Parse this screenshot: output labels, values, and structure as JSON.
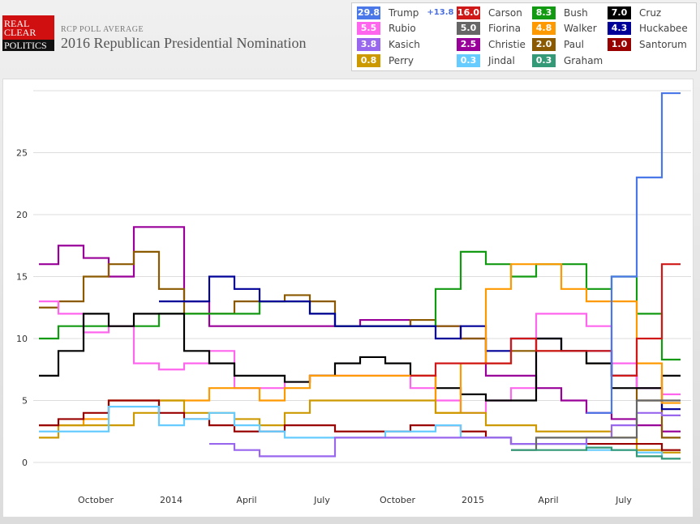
{
  "header": {
    "logo": [
      "REAL",
      "CLEAR",
      "POLITICS"
    ],
    "subtitle": "RCP POLL AVERAGE",
    "title": "2016 Republican Presidential Nomination"
  },
  "legend": [
    {
      "name": "Trump",
      "value": "29.8",
      "color": "#4a78e8",
      "change": "+13.8"
    },
    {
      "name": "Carson",
      "value": "16.0",
      "color": "#d01818"
    },
    {
      "name": "Bush",
      "value": "8.3",
      "color": "#139a13"
    },
    {
      "name": "Cruz",
      "value": "7.0",
      "color": "#000000"
    },
    {
      "name": "Rubio",
      "value": "5.5",
      "color": "#ff66ee"
    },
    {
      "name": "Fiorina",
      "value": "5.0",
      "color": "#666666"
    },
    {
      "name": "Walker",
      "value": "4.8",
      "color": "#ff9900"
    },
    {
      "name": "Huckabee",
      "value": "4.3",
      "color": "#000099"
    },
    {
      "name": "Kasich",
      "value": "3.8",
      "color": "#9966ee"
    },
    {
      "name": "Christie",
      "value": "2.5",
      "color": "#990099"
    },
    {
      "name": "Paul",
      "value": "2.0",
      "color": "#8b5a00"
    },
    {
      "name": "Santorum",
      "value": "1.0",
      "color": "#990000"
    },
    {
      "name": "Perry",
      "value": "0.8",
      "color": "#cc9900"
    },
    {
      "name": "Jindal",
      "value": "0.3",
      "color": "#66ccff"
    },
    {
      "name": "Graham",
      "value": "0.3",
      "color": "#339977"
    }
  ],
  "chart_data": {
    "type": "line",
    "title": "2016 Republican Presidential Nomination",
    "ylim": [
      0,
      30
    ],
    "yticks": [
      "0",
      "5",
      "10",
      "15",
      "20",
      "25"
    ],
    "xticks": [
      {
        "label": "October",
        "month": 2
      },
      {
        "label": "2014",
        "month": 5
      },
      {
        "label": "April",
        "month": 8
      },
      {
        "label": "July",
        "month": 11
      },
      {
        "label": "October",
        "month": 14
      },
      {
        "label": "2015",
        "month": 17
      },
      {
        "label": "April",
        "month": 20
      },
      {
        "label": "July",
        "month": 23
      }
    ],
    "x": [
      "2013-08",
      "2013-09",
      "2013-10",
      "2013-11",
      "2013-12",
      "2014-01",
      "2014-02",
      "2014-03",
      "2014-04",
      "2014-05",
      "2014-06",
      "2014-07",
      "2014-08",
      "2014-09",
      "2014-10",
      "2014-11",
      "2014-12",
      "2015-01",
      "2015-02",
      "2015-03",
      "2015-04",
      "2015-05",
      "2015-06",
      "2015-07",
      "2015-08",
      "2015-09"
    ],
    "series": [
      {
        "name": "Christie",
        "values": [
          16,
          17.5,
          16.5,
          15,
          19,
          19,
          13,
          11,
          11,
          11,
          11,
          11,
          11,
          11.5,
          11.5,
          11,
          11,
          10,
          7,
          7,
          6,
          5,
          4,
          3.5,
          3,
          2.5
        ]
      },
      {
        "name": "Paul",
        "values": [
          12.5,
          13,
          15,
          16,
          17,
          14,
          12,
          12,
          13,
          13,
          13.5,
          13,
          11,
          11,
          11,
          11.5,
          11,
          10,
          8,
          9,
          9,
          9,
          8,
          7,
          5,
          2
        ]
      },
      {
        "name": "Bush",
        "values": [
          10,
          11,
          11,
          11,
          11,
          12,
          12,
          12,
          12,
          13,
          13,
          12,
          11,
          11,
          11,
          11,
          14,
          17,
          16,
          15,
          16,
          16,
          14,
          15,
          12,
          8.3
        ]
      },
      {
        "name": "Huckabee",
        "values": [
          null,
          null,
          null,
          null,
          null,
          13,
          13,
          15,
          14,
          13,
          13,
          12,
          11,
          11,
          11,
          11,
          10,
          11,
          9,
          10,
          10,
          9,
          9,
          7,
          6,
          4.3
        ]
      },
      {
        "name": "Rubio",
        "values": [
          13,
          12,
          10.5,
          11,
          8,
          7.5,
          8,
          9,
          6,
          6,
          6.5,
          7,
          7,
          7,
          7,
          6,
          5,
          4,
          5,
          6,
          12,
          12,
          11,
          8,
          6,
          5.5
        ]
      },
      {
        "name": "Cruz",
        "values": [
          7,
          9,
          12,
          11,
          12,
          12,
          9,
          8,
          7,
          7,
          6.5,
          7,
          8,
          8.5,
          8,
          7,
          6,
          5.5,
          5,
          5,
          10,
          9,
          8,
          6,
          6,
          7
        ]
      },
      {
        "name": "Walker",
        "values": [
          3,
          3,
          3.5,
          5,
          5,
          5,
          5,
          6,
          6,
          5,
          6,
          7,
          7,
          7,
          7,
          7,
          4,
          8,
          14,
          16,
          16,
          14,
          13,
          13,
          8,
          4.8
        ]
      },
      {
        "name": "Perry",
        "values": [
          2,
          3,
          3,
          3,
          4,
          5,
          4,
          4,
          3.5,
          3,
          4,
          5,
          5,
          5,
          5,
          5,
          4,
          4,
          3,
          3,
          2.5,
          2.5,
          2.5,
          2,
          1,
          0.8
        ]
      },
      {
        "name": "Santorum",
        "values": [
          3,
          3.5,
          4,
          5,
          5,
          4,
          3.5,
          3,
          2.5,
          2.5,
          3,
          3,
          2.5,
          2.5,
          2.5,
          3,
          3,
          2.5,
          2,
          1.5,
          1.5,
          1.5,
          1.5,
          1.5,
          1.5,
          1
        ]
      },
      {
        "name": "Jindal",
        "values": [
          2.5,
          2.5,
          2.5,
          4.5,
          4.5,
          3,
          3.5,
          4,
          3,
          2.5,
          2,
          2,
          2,
          2,
          2.5,
          2.5,
          3,
          2,
          2,
          1.5,
          1.5,
          1.5,
          1,
          1,
          0.8,
          0.3
        ]
      },
      {
        "name": "Kasich",
        "values": [
          null,
          null,
          null,
          null,
          null,
          null,
          null,
          1.5,
          1,
          0.5,
          0.5,
          0.5,
          2,
          2,
          2,
          2,
          2,
          2,
          2,
          1.5,
          1.5,
          1.5,
          2,
          3,
          4,
          3.8
        ]
      },
      {
        "name": "Fiorina",
        "values": [
          null,
          null,
          null,
          null,
          null,
          null,
          null,
          null,
          null,
          null,
          null,
          null,
          null,
          null,
          null,
          null,
          null,
          null,
          null,
          1,
          2,
          2,
          2,
          2,
          5,
          5
        ]
      },
      {
        "name": "Graham",
        "values": [
          null,
          null,
          null,
          null,
          null,
          null,
          null,
          null,
          null,
          null,
          null,
          null,
          null,
          null,
          null,
          null,
          null,
          null,
          null,
          1,
          1,
          1,
          1.2,
          1,
          0.5,
          0.3
        ]
      },
      {
        "name": "Carson",
        "values": [
          null,
          null,
          null,
          null,
          null,
          null,
          null,
          null,
          null,
          null,
          null,
          null,
          null,
          null,
          null,
          7,
          8,
          8,
          8,
          10,
          9,
          9,
          9,
          7,
          10,
          16
        ]
      },
      {
        "name": "Trump",
        "values": [
          null,
          null,
          null,
          null,
          null,
          null,
          null,
          null,
          null,
          null,
          null,
          null,
          null,
          null,
          null,
          null,
          null,
          null,
          null,
          null,
          null,
          null,
          4,
          15,
          23,
          29.8
        ]
      }
    ]
  }
}
